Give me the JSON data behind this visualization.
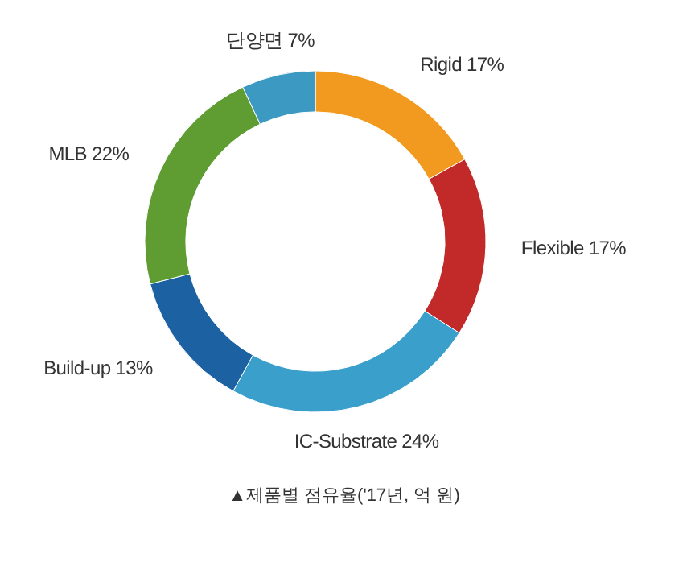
{
  "chart_data": {
    "type": "donut",
    "categories": [
      "Rigid",
      "Flexible",
      "IC-Substrate",
      "Build-up",
      "MLB",
      "단양면"
    ],
    "values": [
      17,
      17,
      24,
      13,
      22,
      7
    ],
    "value_labels": [
      "17%",
      "17%",
      "24%",
      "13%",
      "22%",
      "7%"
    ],
    "colors": [
      "#f29a1f",
      "#c22a2a",
      "#3a9fcb",
      "#1c62a3",
      "#5f9c32",
      "#3c9ac2"
    ],
    "annotations": [
      "▲제품별 점유율('17년, 억 원)"
    ]
  }
}
